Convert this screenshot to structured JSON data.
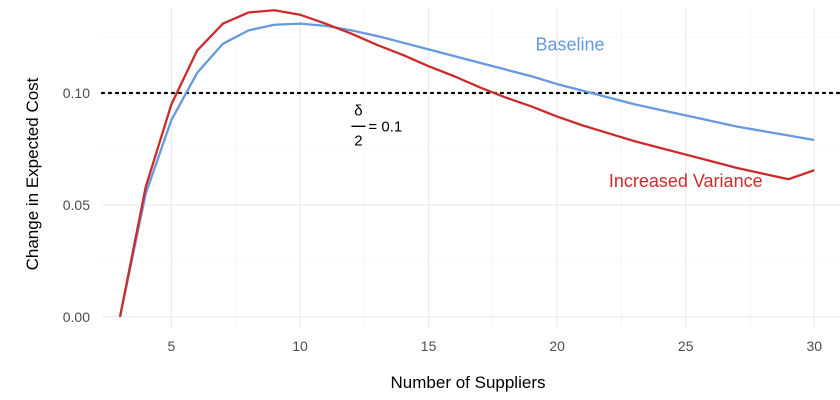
{
  "chart_data": {
    "type": "line",
    "xlabel": "Number of Suppliers",
    "ylabel": "Change in Expected Cost",
    "xlim": [
      2.3,
      31
    ],
    "ylim": [
      -0.005,
      0.138
    ],
    "x_ticks": [
      5,
      10,
      15,
      20,
      25,
      30
    ],
    "x_tick_labels": [
      "5",
      "10",
      "15",
      "20",
      "25",
      "30"
    ],
    "y_ticks": [
      0,
      0.05,
      0.1
    ],
    "y_tick_labels": [
      "0.00",
      "0.05",
      "0.10"
    ],
    "grid": true,
    "reference_line": {
      "y": 0.1,
      "style": "dotted"
    },
    "annotation": {
      "numerator": "δ",
      "denominator": "2",
      "rhs": "= 0.1",
      "x": 12,
      "y": 0.082
    },
    "series": [
      {
        "name": "Baseline",
        "color": "#6699dd",
        "label_at": {
          "x": 20.5,
          "y": 0.119
        },
        "x": [
          3,
          4,
          5,
          6,
          7,
          8,
          9,
          10,
          11,
          12,
          13,
          14,
          15,
          16,
          17,
          18,
          19,
          20,
          21,
          22,
          23,
          24,
          25,
          26,
          27,
          28,
          29,
          30
        ],
        "values": [
          0.0,
          0.055,
          0.088,
          0.109,
          0.122,
          0.128,
          0.1305,
          0.131,
          0.13,
          0.128,
          0.1255,
          0.1225,
          0.1195,
          0.1165,
          0.1135,
          0.1105,
          0.1075,
          0.104,
          0.101,
          0.098,
          0.095,
          0.0925,
          0.09,
          0.0875,
          0.085,
          0.083,
          0.081,
          0.079
        ]
      },
      {
        "name": "Increased Variance",
        "color": "#cc2b2b",
        "label_at": {
          "x": 25,
          "y": 0.058
        },
        "x": [
          3,
          4,
          5,
          6,
          7,
          8,
          9,
          10,
          11,
          12,
          13,
          14,
          15,
          16,
          17,
          18,
          19,
          20,
          21,
          22,
          23,
          24,
          25,
          26,
          27,
          28,
          29,
          30
        ],
        "values": [
          0.0,
          0.058,
          0.095,
          0.119,
          0.131,
          0.136,
          0.137,
          0.135,
          0.131,
          0.1265,
          0.1215,
          0.117,
          0.112,
          0.1075,
          0.1025,
          0.098,
          0.094,
          0.0895,
          0.0855,
          0.082,
          0.0785,
          0.0755,
          0.0725,
          0.0695,
          0.0665,
          0.064,
          0.0615,
          0.0655
        ]
      }
    ]
  }
}
